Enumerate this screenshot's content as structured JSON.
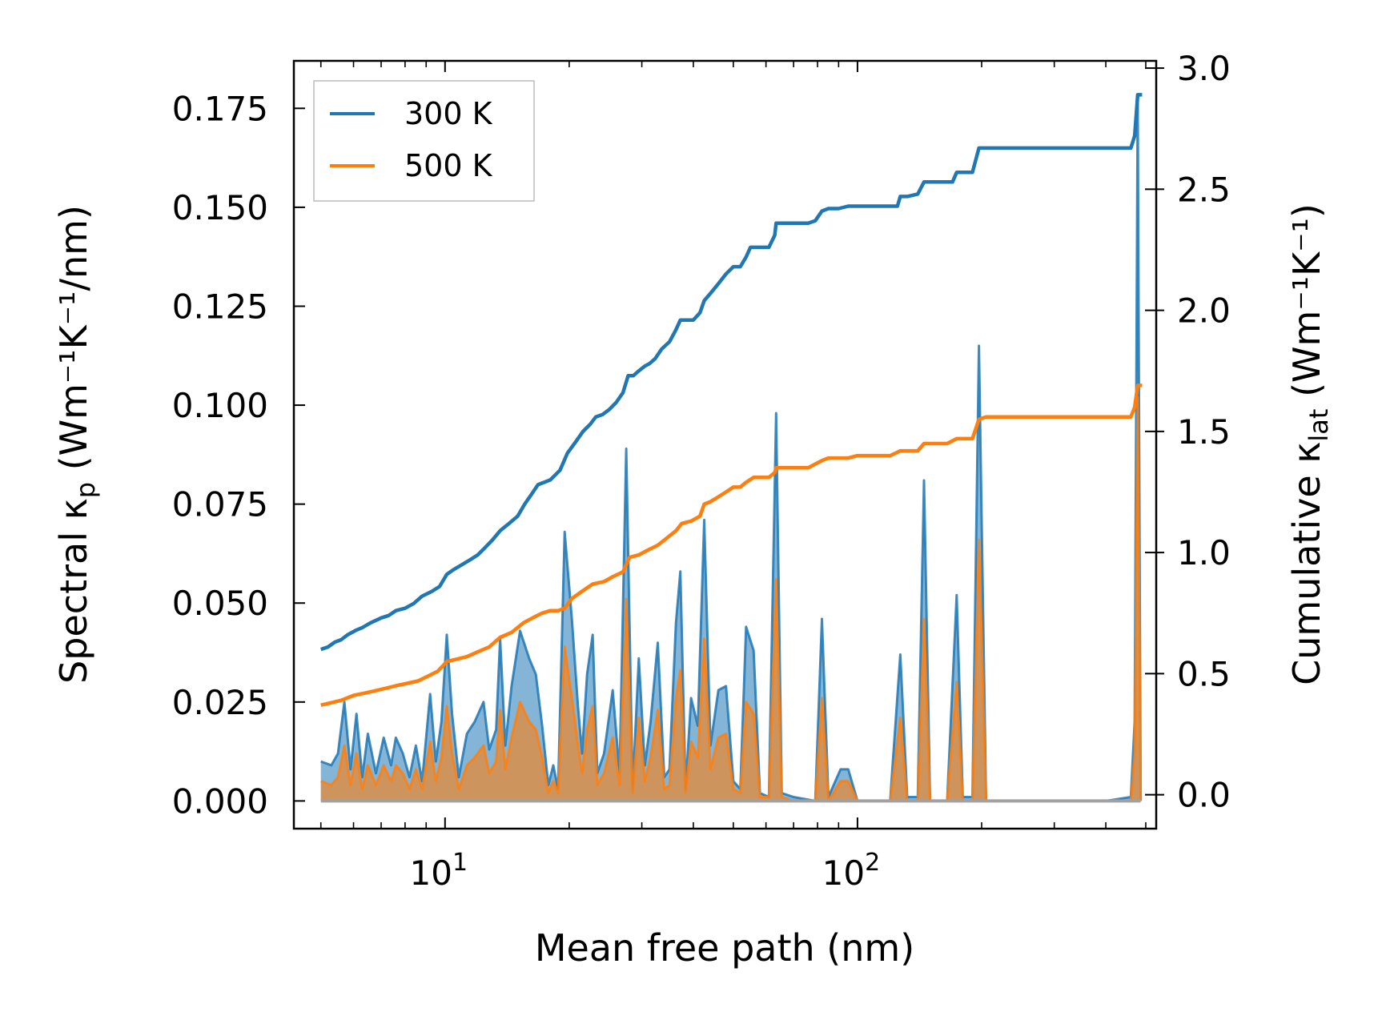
{
  "chart_data": {
    "type": "line",
    "xscale": "log",
    "xlabel": "Mean free path (nm)",
    "ylabel_left": {
      "prefix": "Spectral κ",
      "sub": "p",
      "suffix": " (Wm⁻¹K⁻¹/nm)"
    },
    "ylabel_right": {
      "prefix": "Cumulative κ",
      "sub": "lat",
      "suffix": " (Wm⁻¹K⁻¹)"
    },
    "xlim": [
      4.3,
      530
    ],
    "ylim_left": [
      -0.007,
      0.187
    ],
    "ylim_right": [
      -0.14,
      3.03
    ],
    "x_major_ticks": [
      {
        "value": 10,
        "base": "10",
        "exp": "1"
      },
      {
        "value": 100,
        "base": "10",
        "exp": "2"
      }
    ],
    "y_left_ticks": [
      {
        "value": 0.0,
        "label": "0.000"
      },
      {
        "value": 0.025,
        "label": "0.025"
      },
      {
        "value": 0.05,
        "label": "0.050"
      },
      {
        "value": 0.075,
        "label": "0.075"
      },
      {
        "value": 0.1,
        "label": "0.100"
      },
      {
        "value": 0.125,
        "label": "0.125"
      },
      {
        "value": 0.15,
        "label": "0.150"
      },
      {
        "value": 0.175,
        "label": "0.175"
      }
    ],
    "y_right_ticks": [
      {
        "value": 0.0,
        "label": "0.0"
      },
      {
        "value": 0.5,
        "label": "0.5"
      },
      {
        "value": 1.0,
        "label": "1.0"
      },
      {
        "value": 1.5,
        "label": "1.5"
      },
      {
        "value": 2.0,
        "label": "2.0"
      },
      {
        "value": 2.5,
        "label": "2.5"
      },
      {
        "value": 3.0,
        "label": "3.0"
      }
    ],
    "legend": {
      "location": "upper-left",
      "entries": [
        {
          "label": "300 K",
          "color": "#1f77b4"
        },
        {
          "label": "500 K",
          "color": "#ff7f0e"
        }
      ]
    },
    "spectral_300K": [
      [
        5,
        0.01
      ],
      [
        5.3,
        0.009
      ],
      [
        5.5,
        0.012
      ],
      [
        5.7,
        0.025
      ],
      [
        5.9,
        0.008
      ],
      [
        6.1,
        0.022
      ],
      [
        6.3,
        0.006
      ],
      [
        6.5,
        0.017
      ],
      [
        6.8,
        0.007
      ],
      [
        7.1,
        0.016
      ],
      [
        7.4,
        0.009
      ],
      [
        7.6,
        0.016
      ],
      [
        7.9,
        0.012
      ],
      [
        8.2,
        0.006
      ],
      [
        8.5,
        0.014
      ],
      [
        8.8,
        0.005
      ],
      [
        9.2,
        0.027
      ],
      [
        9.5,
        0.01
      ],
      [
        9.8,
        0.02
      ],
      [
        10.1,
        0.042
      ],
      [
        10.4,
        0.022
      ],
      [
        10.8,
        0.006
      ],
      [
        11.3,
        0.017
      ],
      [
        11.8,
        0.02
      ],
      [
        12.4,
        0.025
      ],
      [
        12.8,
        0.013
      ],
      [
        13.3,
        0.018
      ],
      [
        13.6,
        0.041
      ],
      [
        14,
        0.014
      ],
      [
        14.5,
        0.029
      ],
      [
        15.2,
        0.043
      ],
      [
        16,
        0.036
      ],
      [
        16.6,
        0.032
      ],
      [
        17.2,
        0.019
      ],
      [
        17.8,
        0.004
      ],
      [
        18.3,
        0.009
      ],
      [
        18.8,
        0.003
      ],
      [
        19.5,
        0.068
      ],
      [
        20.3,
        0.046
      ],
      [
        21,
        0.024
      ],
      [
        21.5,
        0.012
      ],
      [
        22.1,
        0.032
      ],
      [
        22.8,
        0.042
      ],
      [
        23.4,
        0.007
      ],
      [
        24.3,
        0.012
      ],
      [
        25.5,
        0.028
      ],
      [
        26.5,
        0.007
      ],
      [
        27.5,
        0.089
      ],
      [
        28.5,
        0.003
      ],
      [
        29.5,
        0.036
      ],
      [
        30.5,
        0.009
      ],
      [
        31.5,
        0.02
      ],
      [
        32.8,
        0.04
      ],
      [
        34,
        0.006
      ],
      [
        35,
        0.008
      ],
      [
        36.3,
        0.045
      ],
      [
        37.2,
        0.058
      ],
      [
        38.3,
        0.003
      ],
      [
        39.5,
        0.026
      ],
      [
        41,
        0.019
      ],
      [
        42.5,
        0.071
      ],
      [
        44,
        0.014
      ],
      [
        46,
        0.028
      ],
      [
        48,
        0.029
      ],
      [
        50,
        0.005
      ],
      [
        52,
        0.003
      ],
      [
        53.7,
        0.044
      ],
      [
        56,
        0.038
      ],
      [
        58,
        0.002
      ],
      [
        61,
        0.001
      ],
      [
        63.5,
        0.098
      ],
      [
        65.5,
        0.002
      ],
      [
        70,
        0.001
      ],
      [
        79,
        0.0
      ],
      [
        82,
        0.046
      ],
      [
        85,
        0.001
      ],
      [
        91,
        0.008
      ],
      [
        95,
        0.008
      ],
      [
        100,
        0.0
      ],
      [
        120,
        0.0
      ],
      [
        127,
        0.037
      ],
      [
        132,
        0.001
      ],
      [
        140,
        0.001
      ],
      [
        145,
        0.081
      ],
      [
        150,
        0.0
      ],
      [
        165,
        0.0
      ],
      [
        174,
        0.052
      ],
      [
        180,
        0.001
      ],
      [
        190,
        0.001
      ],
      [
        197,
        0.115
      ],
      [
        205,
        0.0
      ],
      [
        240,
        0.0
      ],
      [
        300,
        0.0
      ],
      [
        400,
        0.0
      ],
      [
        460,
        0.001
      ],
      [
        470,
        0.02
      ],
      [
        478,
        0.178
      ],
      [
        486,
        0.0
      ]
    ],
    "spectral_500K": [
      [
        5,
        0.005
      ],
      [
        5.3,
        0.004
      ],
      [
        5.5,
        0.006
      ],
      [
        5.7,
        0.014
      ],
      [
        5.9,
        0.004
      ],
      [
        6.1,
        0.012
      ],
      [
        6.3,
        0.003
      ],
      [
        6.5,
        0.009
      ],
      [
        6.8,
        0.004
      ],
      [
        7.1,
        0.009
      ],
      [
        7.4,
        0.005
      ],
      [
        7.6,
        0.009
      ],
      [
        7.9,
        0.007
      ],
      [
        8.2,
        0.003
      ],
      [
        8.5,
        0.008
      ],
      [
        8.8,
        0.003
      ],
      [
        9.2,
        0.015
      ],
      [
        9.5,
        0.005
      ],
      [
        9.8,
        0.011
      ],
      [
        10.1,
        0.024
      ],
      [
        10.4,
        0.012
      ],
      [
        10.8,
        0.003
      ],
      [
        11.3,
        0.009
      ],
      [
        11.8,
        0.011
      ],
      [
        12.4,
        0.014
      ],
      [
        12.8,
        0.007
      ],
      [
        13.3,
        0.01
      ],
      [
        13.6,
        0.023
      ],
      [
        14,
        0.008
      ],
      [
        14.5,
        0.016
      ],
      [
        15.2,
        0.025
      ],
      [
        16,
        0.02
      ],
      [
        16.6,
        0.018
      ],
      [
        17.2,
        0.011
      ],
      [
        17.8,
        0.002
      ],
      [
        18.3,
        0.005
      ],
      [
        18.8,
        0.002
      ],
      [
        19.5,
        0.039
      ],
      [
        20.3,
        0.026
      ],
      [
        21,
        0.014
      ],
      [
        21.5,
        0.007
      ],
      [
        22.1,
        0.018
      ],
      [
        22.8,
        0.024
      ],
      [
        23.4,
        0.004
      ],
      [
        24.3,
        0.007
      ],
      [
        25.5,
        0.016
      ],
      [
        26.5,
        0.004
      ],
      [
        27.5,
        0.051
      ],
      [
        28.5,
        0.002
      ],
      [
        29.5,
        0.021
      ],
      [
        30.5,
        0.005
      ],
      [
        31.5,
        0.011
      ],
      [
        32.8,
        0.023
      ],
      [
        34,
        0.003
      ],
      [
        35,
        0.004
      ],
      [
        36.3,
        0.026
      ],
      [
        37.2,
        0.033
      ],
      [
        38.3,
        0.002
      ],
      [
        39.5,
        0.015
      ],
      [
        41,
        0.011
      ],
      [
        42.5,
        0.041
      ],
      [
        44,
        0.008
      ],
      [
        46,
        0.016
      ],
      [
        48,
        0.017
      ],
      [
        50,
        0.003
      ],
      [
        52,
        0.002
      ],
      [
        53.7,
        0.025
      ],
      [
        56,
        0.022
      ],
      [
        58,
        0.001
      ],
      [
        61,
        0.001
      ],
      [
        63.5,
        0.056
      ],
      [
        65.5,
        0.001
      ],
      [
        70,
        0.0
      ],
      [
        79,
        0.0
      ],
      [
        82,
        0.026
      ],
      [
        85,
        0.0
      ],
      [
        91,
        0.005
      ],
      [
        95,
        0.005
      ],
      [
        100,
        0.0
      ],
      [
        120,
        0.0
      ],
      [
        127,
        0.021
      ],
      [
        132,
        0.0
      ],
      [
        140,
        0.0
      ],
      [
        145,
        0.046
      ],
      [
        150,
        0.0
      ],
      [
        165,
        0.0
      ],
      [
        174,
        0.03
      ],
      [
        180,
        0.0
      ],
      [
        190,
        0.0
      ],
      [
        197,
        0.066
      ],
      [
        205,
        0.0
      ],
      [
        240,
        0.0
      ],
      [
        300,
        0.0
      ],
      [
        400,
        0.0
      ],
      [
        460,
        0.0
      ],
      [
        470,
        0.012
      ],
      [
        478,
        0.102
      ],
      [
        486,
        0.0
      ]
    ],
    "cumulative_300K": [
      [
        5,
        0.6
      ],
      [
        5.2,
        0.61
      ],
      [
        5.4,
        0.63
      ],
      [
        5.6,
        0.64
      ],
      [
        5.8,
        0.66
      ],
      [
        6.1,
        0.68
      ],
      [
        6.3,
        0.69
      ],
      [
        6.6,
        0.71
      ],
      [
        7,
        0.73
      ],
      [
        7.3,
        0.74
      ],
      [
        7.6,
        0.76
      ],
      [
        8.0,
        0.77
      ],
      [
        8.4,
        0.79
      ],
      [
        8.8,
        0.82
      ],
      [
        9.3,
        0.84
      ],
      [
        9.7,
        0.86
      ],
      [
        10.1,
        0.91
      ],
      [
        10.5,
        0.93
      ],
      [
        11,
        0.95
      ],
      [
        11.5,
        0.97
      ],
      [
        12,
        0.99
      ],
      [
        12.5,
        1.02
      ],
      [
        13,
        1.05
      ],
      [
        13.6,
        1.09
      ],
      [
        14.3,
        1.12
      ],
      [
        15,
        1.15
      ],
      [
        15.6,
        1.2
      ],
      [
        16.2,
        1.24
      ],
      [
        16.8,
        1.28
      ],
      [
        17.4,
        1.29
      ],
      [
        18,
        1.3
      ],
      [
        19,
        1.34
      ],
      [
        19.8,
        1.41
      ],
      [
        20.8,
        1.46
      ],
      [
        21.6,
        1.5
      ],
      [
        22.5,
        1.53
      ],
      [
        23.2,
        1.56
      ],
      [
        24.1,
        1.57
      ],
      [
        25,
        1.59
      ],
      [
        26,
        1.62
      ],
      [
        27,
        1.66
      ],
      [
        27.8,
        1.73
      ],
      [
        28.6,
        1.73
      ],
      [
        29.5,
        1.75
      ],
      [
        30.5,
        1.77
      ],
      [
        31.3,
        1.78
      ],
      [
        32.3,
        1.8
      ],
      [
        33.5,
        1.84
      ],
      [
        35,
        1.87
      ],
      [
        36.3,
        1.92
      ],
      [
        37.2,
        1.96
      ],
      [
        38.3,
        1.96
      ],
      [
        40,
        1.96
      ],
      [
        41.5,
        1.99
      ],
      [
        42.5,
        2.04
      ],
      [
        44,
        2.07
      ],
      [
        46,
        2.11
      ],
      [
        48,
        2.15
      ],
      [
        50,
        2.18
      ],
      [
        52,
        2.18
      ],
      [
        53.7,
        2.22
      ],
      [
        55,
        2.26
      ],
      [
        57,
        2.26
      ],
      [
        61,
        2.26
      ],
      [
        63,
        2.31
      ],
      [
        63.5,
        2.36
      ],
      [
        66,
        2.36
      ],
      [
        72,
        2.36
      ],
      [
        76,
        2.36
      ],
      [
        79,
        2.37
      ],
      [
        82,
        2.41
      ],
      [
        85,
        2.42
      ],
      [
        90,
        2.42
      ],
      [
        95,
        2.43
      ],
      [
        100,
        2.43
      ],
      [
        110,
        2.43
      ],
      [
        120,
        2.43
      ],
      [
        125,
        2.43
      ],
      [
        127,
        2.47
      ],
      [
        132,
        2.47
      ],
      [
        140,
        2.48
      ],
      [
        145,
        2.53
      ],
      [
        150,
        2.53
      ],
      [
        165,
        2.53
      ],
      [
        170,
        2.53
      ],
      [
        174,
        2.57
      ],
      [
        180,
        2.57
      ],
      [
        190,
        2.57
      ],
      [
        197,
        2.67
      ],
      [
        205,
        2.67
      ],
      [
        300,
        2.67
      ],
      [
        400,
        2.67
      ],
      [
        460,
        2.67
      ],
      [
        470,
        2.72
      ],
      [
        478,
        2.89
      ],
      [
        490,
        2.89
      ]
    ],
    "cumulative_500K": [
      [
        5,
        0.37
      ],
      [
        5.3,
        0.38
      ],
      [
        5.6,
        0.39
      ],
      [
        6,
        0.41
      ],
      [
        6.4,
        0.42
      ],
      [
        6.8,
        0.43
      ],
      [
        7.2,
        0.44
      ],
      [
        7.6,
        0.45
      ],
      [
        8.1,
        0.46
      ],
      [
        8.6,
        0.47
      ],
      [
        9.1,
        0.49
      ],
      [
        9.6,
        0.51
      ],
      [
        10.1,
        0.55
      ],
      [
        10.7,
        0.56
      ],
      [
        11.3,
        0.57
      ],
      [
        12,
        0.59
      ],
      [
        12.8,
        0.61
      ],
      [
        13.6,
        0.65
      ],
      [
        14.5,
        0.67
      ],
      [
        15.5,
        0.71
      ],
      [
        16.3,
        0.73
      ],
      [
        17.2,
        0.75
      ],
      [
        18,
        0.76
      ],
      [
        18.8,
        0.76
      ],
      [
        19.5,
        0.77
      ],
      [
        20.3,
        0.81
      ],
      [
        21.5,
        0.84
      ],
      [
        22.8,
        0.87
      ],
      [
        24.3,
        0.88
      ],
      [
        25.5,
        0.9
      ],
      [
        27,
        0.92
      ],
      [
        28,
        0.98
      ],
      [
        29.5,
        0.99
      ],
      [
        31,
        1.01
      ],
      [
        32.8,
        1.03
      ],
      [
        34.5,
        1.06
      ],
      [
        36.3,
        1.09
      ],
      [
        37.5,
        1.12
      ],
      [
        39.5,
        1.13
      ],
      [
        41.5,
        1.15
      ],
      [
        42.5,
        1.2
      ],
      [
        44,
        1.21
      ],
      [
        46,
        1.23
      ],
      [
        48,
        1.25
      ],
      [
        50,
        1.27
      ],
      [
        52,
        1.27
      ],
      [
        53.7,
        1.29
      ],
      [
        56,
        1.31
      ],
      [
        61,
        1.31
      ],
      [
        63,
        1.33
      ],
      [
        63.5,
        1.35
      ],
      [
        66,
        1.35
      ],
      [
        76,
        1.35
      ],
      [
        82,
        1.38
      ],
      [
        85,
        1.39
      ],
      [
        95,
        1.39
      ],
      [
        100,
        1.4
      ],
      [
        120,
        1.4
      ],
      [
        127,
        1.42
      ],
      [
        140,
        1.42
      ],
      [
        145,
        1.45
      ],
      [
        165,
        1.45
      ],
      [
        174,
        1.47
      ],
      [
        190,
        1.47
      ],
      [
        197,
        1.55
      ],
      [
        205,
        1.56
      ],
      [
        300,
        1.56
      ],
      [
        460,
        1.56
      ],
      [
        470,
        1.6
      ],
      [
        478,
        1.69
      ],
      [
        490,
        1.69
      ]
    ]
  }
}
